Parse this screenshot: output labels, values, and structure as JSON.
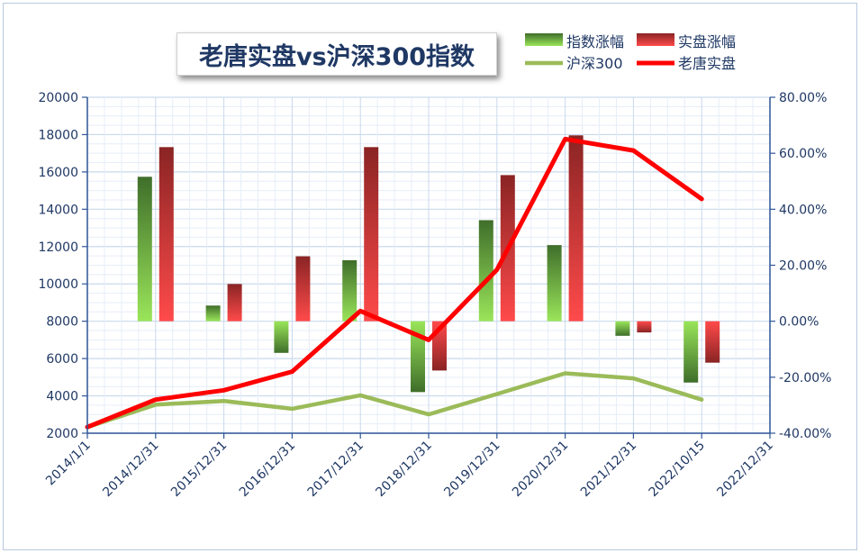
{
  "chart_data": {
    "type": "bar",
    "title": "老唐实盘vs沪深300指数",
    "categories": [
      "2014/1/1",
      "2014/12/31",
      "2015/12/31",
      "2016/12/31",
      "2017/12/31",
      "2018/12/31",
      "2019/12/31",
      "2020/12/31",
      "2021/12/31",
      "2022/10/15",
      "2022/12/31"
    ],
    "left_axis": {
      "range": [
        2000,
        20000
      ],
      "ticks": [
        "2000",
        "4000",
        "6000",
        "8000",
        "10000",
        "12000",
        "14000",
        "16000",
        "18000",
        "20000"
      ]
    },
    "right_axis": {
      "range": [
        -0.4,
        0.8
      ],
      "ticks": [
        "-40.00%",
        "-20.00%",
        "0.00%",
        "20.00%",
        "40.00%",
        "60.00%",
        "80.00%"
      ]
    },
    "grid": true,
    "legend_position": "top-right",
    "series": [
      {
        "name": "指数涨幅",
        "kind": "bar",
        "axis": "right",
        "color": "#6fbf3a",
        "values": [
          null,
          0.516,
          0.056,
          -0.113,
          0.218,
          -0.253,
          0.361,
          0.272,
          -0.052,
          -0.219,
          null
        ]
      },
      {
        "name": "实盘涨幅",
        "kind": "bar",
        "axis": "right",
        "color": "#e8423f",
        "values": [
          null,
          0.622,
          0.133,
          0.232,
          0.622,
          -0.176,
          0.522,
          0.664,
          -0.04,
          -0.148,
          null
        ]
      },
      {
        "name": "沪深300",
        "kind": "line",
        "axis": "left",
        "color": "#9bbb59",
        "values": [
          2330,
          3530,
          3730,
          3310,
          4030,
          3010,
          4100,
          5210,
          4940,
          3800,
          null
        ]
      },
      {
        "name": "老唐实盘",
        "kind": "line",
        "axis": "left",
        "color": "#ff0000",
        "values": [
          2330,
          3800,
          4300,
          5300,
          8550,
          7000,
          10760,
          17760,
          17150,
          14550,
          null
        ]
      }
    ]
  }
}
